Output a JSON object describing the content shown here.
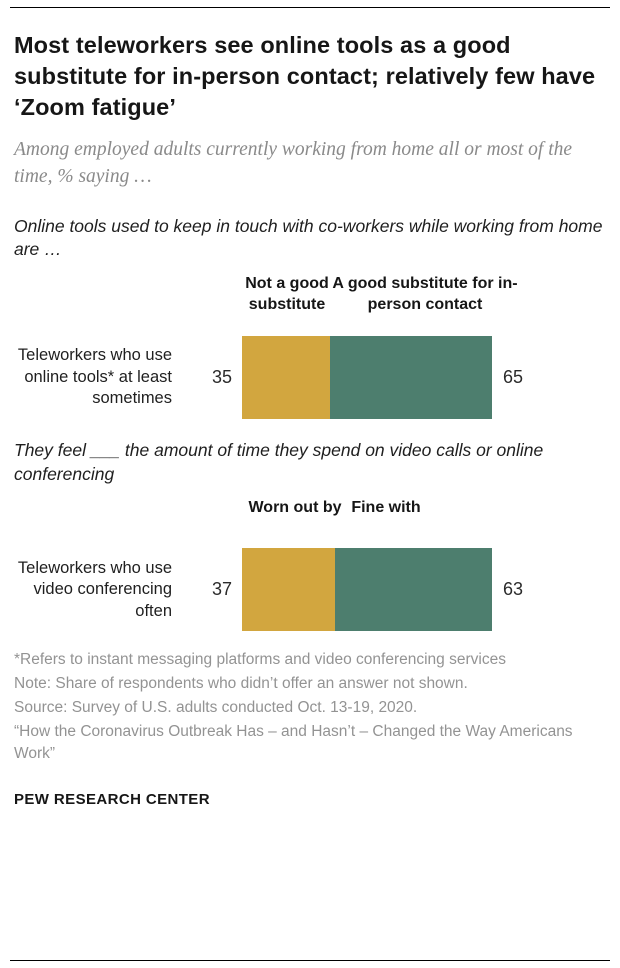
{
  "title": "Most teleworkers see online tools as a good substitute for in-person contact; relatively few have ‘Zoom fatigue’",
  "subtitle": "Among employed adults currently working from home all or most of the time, % saying …",
  "accent": {
    "gold": "#d2a63f",
    "teal": "#4d7e6e",
    "title_text": "#161616",
    "subtitle_gray": "#8a8a8a",
    "note_gray": "#939393"
  },
  "chart_data": [
    {
      "type": "bar",
      "subtype": "horizontal-stacked",
      "title": "Online tools used to keep in touch with co-workers while working from home are …",
      "categories": [
        "Teleworkers who use online tools* at least sometimes"
      ],
      "series": [
        {
          "name": "Not a good substitute",
          "values": [
            35
          ],
          "color": "#d2a63f"
        },
        {
          "name": "A good substitute for in-person contact",
          "values": [
            65
          ],
          "color": "#4d7e6e"
        }
      ],
      "xlim": [
        0,
        100
      ],
      "grid": false,
      "legend_position": "above-bars"
    },
    {
      "type": "bar",
      "subtype": "horizontal-stacked",
      "title": "They feel ___  the amount of time they spend on video calls or online conferencing",
      "categories": [
        "Teleworkers who use video conferencing often"
      ],
      "series": [
        {
          "name": "Worn out by",
          "values": [
            37
          ],
          "color": "#d2a63f"
        },
        {
          "name": "Fine with",
          "values": [
            63
          ],
          "color": "#4d7e6e"
        }
      ],
      "xlim": [
        0,
        100
      ],
      "grid": false,
      "legend_position": "above-bars"
    }
  ],
  "notes": [
    "*Refers to instant messaging platforms and video conferencing services",
    "Note: Share of respondents who didn’t offer an answer not shown.",
    "Source: Survey of U.S. adults conducted Oct. 13-19, 2020.",
    "“How the Coronavirus Outbreak Has – and Hasn’t – Changed the Way Americans Work”"
  ],
  "footer": "PEW RESEARCH CENTER"
}
